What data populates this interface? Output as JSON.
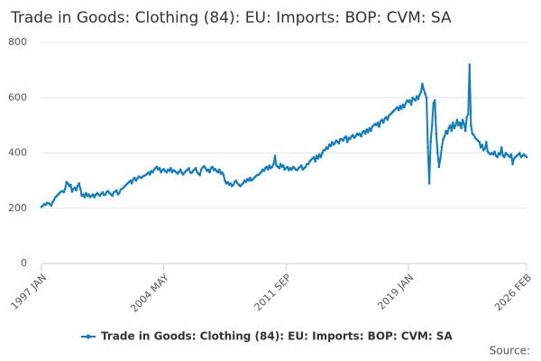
{
  "chart_data": {
    "type": "line",
    "title": "Trade in Goods: Clothing (84): EU: Imports: BOP: CVM: SA",
    "source": "Source:",
    "categories": [
      "1997 JAN",
      null,
      null,
      null,
      null,
      null,
      null,
      null,
      null,
      null,
      null,
      null,
      null,
      null,
      null,
      null,
      null,
      null,
      null,
      null,
      null,
      null,
      null,
      null,
      null,
      null,
      null,
      null,
      null,
      null,
      null,
      null,
      null,
      null,
      null,
      null,
      null,
      null,
      null,
      null,
      null,
      null,
      null,
      null,
      null,
      null,
      null,
      null,
      null,
      null,
      null,
      null,
      null,
      null,
      null,
      null,
      null,
      null,
      null,
      null,
      null,
      null,
      null,
      null,
      null,
      null,
      null,
      null,
      null,
      null,
      null,
      null,
      null,
      null,
      null,
      null,
      null,
      null,
      null,
      null,
      null,
      null,
      null,
      null,
      null,
      null,
      null,
      null,
      "2004 MAY",
      null,
      null,
      null,
      null,
      null,
      null,
      null,
      null,
      null,
      null,
      null,
      null,
      null,
      null,
      null,
      null,
      null,
      null,
      null,
      null,
      null,
      null,
      null,
      null,
      null,
      null,
      null,
      null,
      null,
      null,
      null,
      null,
      null,
      null,
      null,
      null,
      null,
      null,
      null,
      null,
      null,
      null,
      null,
      null,
      null,
      null,
      null,
      null,
      null,
      null,
      null,
      null,
      null,
      null,
      null,
      null,
      null,
      null,
      null,
      null,
      null,
      null,
      null,
      null,
      null,
      null,
      null,
      null,
      null,
      null,
      null,
      null,
      null,
      null,
      null,
      null,
      null,
      null,
      null,
      null,
      null,
      null,
      null,
      null,
      null,
      null,
      null,
      "2011 SEP",
      null,
      null,
      null,
      null,
      null,
      null,
      null,
      null,
      null,
      null,
      null,
      null,
      null,
      null,
      null,
      null,
      null,
      null,
      null,
      null,
      null,
      null,
      null,
      null,
      null,
      null,
      null,
      null,
      null,
      null,
      null,
      null,
      null,
      null,
      null,
      null,
      null,
      null,
      null,
      null,
      null,
      null,
      null,
      null,
      null,
      null,
      null,
      null,
      null,
      null,
      null,
      null,
      null,
      null,
      null,
      null,
      null,
      null,
      null,
      null,
      null,
      null,
      null,
      null,
      null,
      null,
      null,
      null,
      null,
      null,
      null,
      null,
      null,
      null,
      null,
      null,
      null,
      null,
      null,
      null,
      null,
      null,
      null,
      null,
      null,
      null,
      null,
      "2019 JAN",
      null,
      null,
      null,
      null,
      null,
      null,
      null,
      null,
      null,
      null,
      null,
      null,
      null,
      null,
      null,
      null,
      null,
      null,
      null,
      null,
      null,
      null,
      null,
      null,
      null,
      null,
      null,
      null,
      null,
      null,
      null,
      null,
      null,
      null,
      null,
      null,
      null,
      null,
      null,
      null,
      null,
      null,
      null,
      null,
      null,
      null,
      null,
      null,
      null,
      null,
      null,
      null,
      null,
      null,
      null,
      null,
      null,
      null,
      null,
      null,
      null,
      null,
      null,
      null,
      null,
      null,
      null,
      null,
      null,
      null,
      null,
      null,
      null,
      null,
      null,
      null,
      null,
      null,
      null,
      null,
      null,
      null,
      null,
      null,
      "2026 FEB"
    ],
    "series": [
      {
        "name": "Trade in Goods: Clothing (84): EU: Imports: BOP: CVM: SA",
        "color": "#0e7dbf",
        "values": [
          205,
          210,
          215,
          212,
          220,
          218,
          215,
          210,
          222,
          230,
          240,
          245,
          250,
          255,
          260,
          262,
          258,
          270,
          295,
          290,
          280,
          285,
          260,
          270,
          275,
          265,
          280,
          290,
          270,
          245,
          250,
          240,
          255,
          245,
          250,
          240,
          245,
          250,
          240,
          248,
          255,
          250,
          245,
          252,
          258,
          248,
          250,
          260,
          262,
          255,
          250,
          245,
          258,
          260,
          265,
          250,
          255,
          268,
          270,
          275,
          280,
          285,
          290,
          295,
          300,
          290,
          305,
          310,
          300,
          308,
          315,
          312,
          310,
          315,
          318,
          320,
          325,
          330,
          322,
          335,
          330,
          340,
          345,
          350,
          340,
          345,
          330,
          338,
          342,
          335,
          330,
          340,
          335,
          345,
          330,
          338,
          335,
          330,
          325,
          332,
          340,
          328,
          322,
          330,
          335,
          340,
          345,
          330,
          328,
          335,
          340,
          345,
          330,
          325,
          320,
          340,
          348,
          352,
          345,
          335,
          340,
          330,
          345,
          350,
          338,
          342,
          335,
          330,
          340,
          325,
          330,
          320,
          300,
          290,
          295,
          285,
          290,
          280,
          285,
          295,
          300,
          290,
          285,
          280,
          285,
          290,
          300,
          295,
          305,
          300,
          310,
          300,
          305,
          310,
          315,
          320,
          320,
          325,
          330,
          340,
          335,
          345,
          350,
          340,
          355,
          345,
          350,
          360,
          390,
          355,
          350,
          345,
          360,
          350,
          355,
          340,
          345,
          350,
          338,
          345,
          340,
          350,
          345,
          340,
          338,
          345,
          350,
          355,
          340,
          345,
          350,
          360,
          360,
          370,
          375,
          380,
          385,
          370,
          390,
          380,
          395,
          385,
          400,
          410,
          410,
          420,
          415,
          430,
          425,
          440,
          430,
          435,
          445,
          440,
          435,
          450,
          450,
          445,
          455,
          460,
          440,
          455,
          450,
          460,
          465,
          455,
          460,
          470,
          465,
          470,
          460,
          475,
          480,
          470,
          485,
          475,
          490,
          480,
          495,
          500,
          505,
          500,
          510,
          495,
          515,
          520,
          510,
          525,
          530,
          520,
          535,
          540,
          545,
          550,
          555,
          560,
          565,
          555,
          570,
          560,
          575,
          565,
          580,
          590,
          585,
          590,
          575,
          600,
          595,
          590,
          605,
          595,
          610,
          620,
          650,
          630,
          615,
          600,
          420,
          290,
          440,
          500,
          580,
          590,
          470,
          400,
          350,
          380,
          420,
          450,
          460,
          480,
          470,
          490,
          500,
          480,
          510,
          490,
          500,
          520,
          500,
          510,
          490,
          520,
          505,
          480,
          530,
          540,
          720,
          500,
          470,
          465,
          455,
          450,
          445,
          440,
          420,
          430,
          410,
          415,
          440,
          405,
          400,
          395,
          400,
          395,
          405,
          390,
          385,
          400,
          395,
          420,
          390,
          385,
          400,
          395,
          390,
          385,
          395,
          360,
          380,
          385,
          390,
          395,
          400,
          385,
          390,
          395,
          390,
          385
        ]
      }
    ],
    "ylim": [
      0,
      800
    ],
    "yticks": [
      0,
      200,
      400,
      600,
      800
    ],
    "grid": true,
    "legend": "bottom"
  }
}
